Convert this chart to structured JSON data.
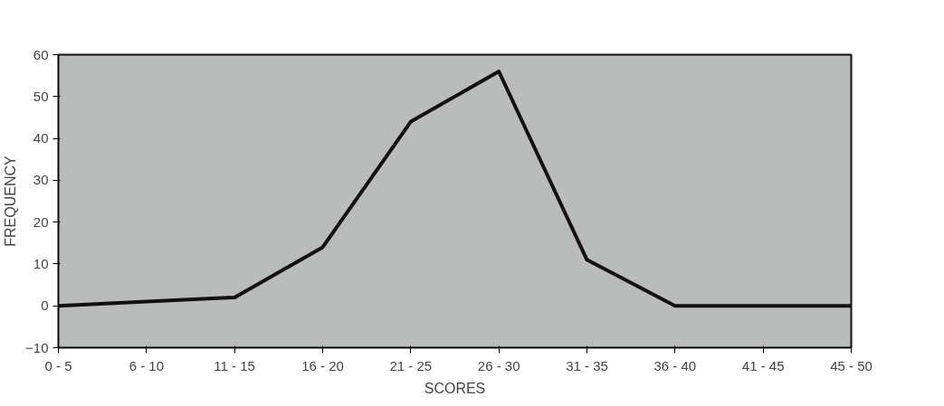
{
  "chart_data": {
    "type": "line",
    "xlabel": "SCORES",
    "ylabel": "FREQUENCY",
    "categories": [
      "0 - 5",
      "6 - 10",
      "11 - 15",
      "16 - 20",
      "21 - 25",
      "26 - 30",
      "31 - 35",
      "36 - 40",
      "41 - 45",
      "45 - 50"
    ],
    "series": [
      {
        "color": "#111111",
        "values": [
          0,
          1,
          2,
          14,
          44,
          56,
          11,
          0,
          0,
          0
        ]
      }
    ],
    "ylim": [
      -10,
      60
    ],
    "yticks": [
      -10,
      0,
      10,
      20,
      30,
      40,
      50,
      60
    ],
    "grid": false
  }
}
